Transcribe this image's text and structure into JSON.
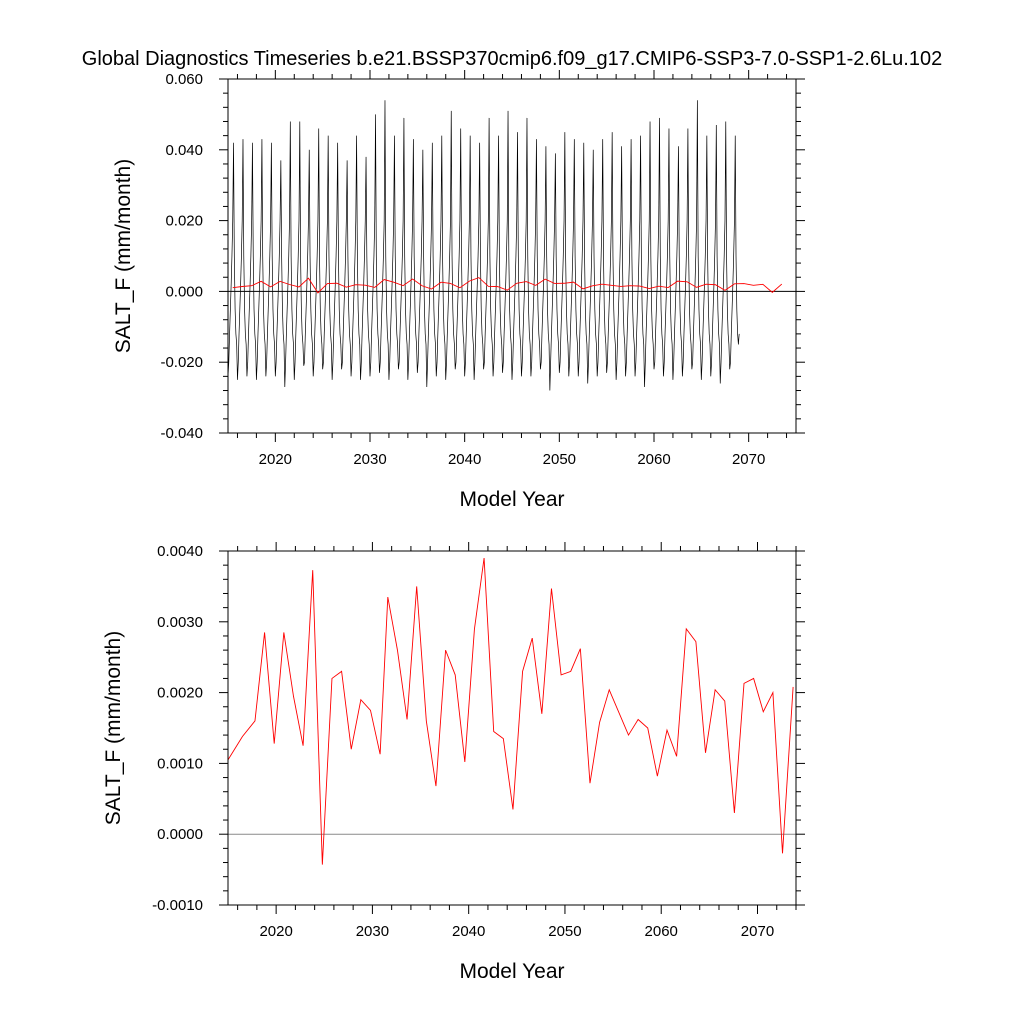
{
  "title": "Global Diagnostics Timeseries b.e21.BSSP370cmip6.f09_g17.CMIP6-SSP3-7.0-SSP1-2.6Lu.102",
  "colors": {
    "monthly": "#000000",
    "annual": "#ff0000",
    "zero_line": "#000000",
    "zero_line_lower": "#8a8a8a"
  },
  "chart_data": [
    {
      "type": "line",
      "xlabel": "Model Year",
      "ylabel": "SALT_F (mm/month)",
      "xlim": [
        2015,
        2075
      ],
      "ylim": [
        -0.04,
        0.06
      ],
      "xticks": [
        2020,
        2030,
        2040,
        2050,
        2060,
        2070
      ],
      "yticks": [
        -0.04,
        -0.02,
        0.0,
        0.02,
        0.04,
        0.06
      ],
      "ytick_labels": [
        "-0.040",
        "-0.020",
        "0.000",
        "0.020",
        "0.040",
        "0.060"
      ],
      "series": [
        {
          "x_start": 2015.0,
          "x_step": 0.08333,
          "values": [
            -0.024,
            -0.02,
            -0.012,
            -0.005,
            0.002,
            0.01,
            0.02,
            0.042,
            0.01,
            -0.005,
            -0.012,
            -0.015,
            -0.025,
            -0.02,
            -0.012,
            -0.005,
            0.002,
            0.01,
            0.02,
            0.043,
            0.01,
            -0.005,
            -0.012,
            -0.015,
            -0.024,
            -0.02,
            -0.012,
            -0.005,
            0.002,
            0.01,
            0.02,
            0.042,
            0.01,
            -0.005,
            -0.012,
            -0.015,
            -0.025,
            -0.02,
            -0.012,
            -0.005,
            0.002,
            0.01,
            0.02,
            0.043,
            0.01,
            -0.005,
            -0.012,
            -0.015,
            -0.024,
            -0.02,
            -0.012,
            -0.005,
            0.002,
            0.01,
            0.02,
            0.042,
            0.01,
            -0.005,
            -0.012,
            -0.015,
            -0.024,
            -0.02,
            -0.012,
            -0.005,
            0.002,
            0.01,
            0.02,
            0.037,
            0.01,
            -0.005,
            -0.012,
            -0.015,
            -0.027,
            -0.02,
            -0.012,
            -0.005,
            0.002,
            0.01,
            0.02,
            0.048,
            0.01,
            -0.005,
            -0.012,
            -0.015,
            -0.025,
            -0.02,
            -0.012,
            -0.005,
            0.002,
            0.01,
            0.02,
            0.048,
            0.01,
            -0.005,
            -0.012,
            -0.015,
            -0.021,
            -0.02,
            -0.012,
            -0.005,
            0.002,
            0.01,
            0.02,
            0.04,
            0.01,
            -0.005,
            -0.012,
            -0.015,
            -0.024,
            -0.02,
            -0.012,
            -0.005,
            0.002,
            0.01,
            0.02,
            0.046,
            0.01,
            -0.005,
            -0.012,
            -0.015,
            -0.022,
            -0.02,
            -0.012,
            -0.005,
            0.002,
            0.01,
            0.02,
            0.044,
            0.01,
            -0.005,
            -0.012,
            -0.015,
            -0.025,
            -0.02,
            -0.012,
            -0.005,
            0.002,
            0.01,
            0.02,
            0.042,
            0.01,
            -0.005,
            -0.012,
            -0.015,
            -0.022,
            -0.02,
            -0.012,
            -0.005,
            0.002,
            0.01,
            0.02,
            0.037,
            0.01,
            -0.005,
            -0.012,
            -0.015,
            -0.024,
            -0.02,
            -0.012,
            -0.005,
            0.002,
            0.01,
            0.02,
            0.044,
            0.01,
            -0.005,
            -0.012,
            -0.015,
            -0.025,
            -0.02,
            -0.012,
            -0.005,
            0.002,
            0.01,
            0.02,
            0.038,
            0.01,
            -0.005,
            -0.012,
            -0.015,
            -0.024,
            -0.02,
            -0.012,
            -0.005,
            0.002,
            0.01,
            0.02,
            0.05,
            0.01,
            -0.005,
            -0.012,
            -0.015,
            -0.023,
            -0.02,
            -0.012,
            -0.005,
            0.002,
            0.01,
            0.02,
            0.054,
            0.01,
            -0.005,
            -0.012,
            -0.015,
            -0.025,
            -0.02,
            -0.012,
            -0.005,
            0.002,
            0.01,
            0.02,
            0.044,
            0.01,
            -0.005,
            -0.012,
            -0.015,
            -0.022,
            -0.02,
            -0.012,
            -0.005,
            0.002,
            0.01,
            0.02,
            0.049,
            0.01,
            -0.005,
            -0.012,
            -0.015,
            -0.025,
            -0.02,
            -0.012,
            -0.005,
            0.002,
            0.01,
            0.02,
            0.043,
            0.01,
            -0.005,
            -0.012,
            -0.015,
            -0.023,
            -0.02,
            -0.012,
            -0.005,
            0.002,
            0.01,
            0.02,
            0.04,
            0.01,
            -0.005,
            -0.012,
            -0.015,
            -0.027,
            -0.02,
            -0.012,
            -0.005,
            0.002,
            0.01,
            0.02,
            0.042,
            0.01,
            -0.005,
            -0.012,
            -0.015,
            -0.024,
            -0.02,
            -0.012,
            -0.005,
            0.002,
            0.01,
            0.02,
            0.044,
            0.01,
            -0.005,
            -0.012,
            -0.015,
            -0.025,
            -0.02,
            -0.012,
            -0.005,
            0.002,
            0.01,
            0.02,
            0.051,
            0.01,
            -0.005,
            -0.012,
            -0.015,
            -0.022,
            -0.02,
            -0.012,
            -0.005,
            0.002,
            0.01,
            0.02,
            0.046,
            0.01,
            -0.005,
            -0.012,
            -0.015,
            -0.024,
            -0.02,
            -0.012,
            -0.005,
            0.002,
            0.01,
            0.02,
            0.044,
            0.01,
            -0.005,
            -0.012,
            -0.015,
            -0.025,
            -0.02,
            -0.012,
            -0.005,
            0.002,
            0.01,
            0.02,
            0.042,
            0.01,
            -0.005,
            -0.012,
            -0.015,
            -0.022,
            -0.02,
            -0.012,
            -0.005,
            0.002,
            0.01,
            0.02,
            0.049,
            0.01,
            -0.005,
            -0.012,
            -0.015,
            -0.024,
            -0.02,
            -0.012,
            -0.005,
            0.002,
            0.01,
            0.02,
            0.044,
            0.01,
            -0.005,
            -0.012,
            -0.015,
            -0.023,
            -0.02,
            -0.012,
            -0.005,
            0.002,
            0.01,
            0.02,
            0.051,
            0.01,
            -0.005,
            -0.012,
            -0.015,
            -0.025,
            -0.02,
            -0.012,
            -0.005,
            0.002,
            0.01,
            0.02,
            0.045,
            0.01,
            -0.005,
            -0.012,
            -0.015,
            -0.024,
            -0.02,
            -0.012,
            -0.005,
            0.002,
            0.01,
            0.02,
            0.049,
            0.01,
            -0.005,
            -0.012,
            -0.015,
            -0.024,
            -0.02,
            -0.012,
            -0.005,
            0.002,
            0.01,
            0.02,
            0.043,
            0.01,
            -0.005,
            -0.012,
            -0.015,
            -0.022,
            -0.02,
            -0.012,
            -0.005,
            0.002,
            0.01,
            0.02,
            0.041,
            0.01,
            -0.005,
            -0.012,
            -0.015,
            -0.028,
            -0.02,
            -0.012,
            -0.005,
            0.002,
            0.01,
            0.02,
            0.039,
            0.01,
            -0.005,
            -0.012,
            -0.015,
            -0.023,
            -0.02,
            -0.012,
            -0.005,
            0.002,
            0.01,
            0.02,
            0.045,
            0.01,
            -0.005,
            -0.012,
            -0.015,
            -0.024,
            -0.02,
            -0.012,
            -0.005,
            0.002,
            0.01,
            0.02,
            0.043,
            0.01,
            -0.005,
            -0.012,
            -0.015,
            -0.024,
            -0.02,
            -0.012,
            -0.005,
            0.002,
            0.01,
            0.02,
            0.042,
            0.01,
            -0.005,
            -0.012,
            -0.015,
            -0.026,
            -0.02,
            -0.012,
            -0.005,
            0.002,
            0.01,
            0.02,
            0.04,
            0.01,
            -0.005,
            -0.012,
            -0.015,
            -0.024,
            -0.02,
            -0.012,
            -0.005,
            0.002,
            0.01,
            0.02,
            0.043,
            0.01,
            -0.005,
            -0.012,
            -0.015,
            -0.023,
            -0.02,
            -0.012,
            -0.005,
            0.002,
            0.01,
            0.02,
            0.045,
            0.01,
            -0.005,
            -0.012,
            -0.015,
            -0.025,
            -0.02,
            -0.012,
            -0.005,
            0.002,
            0.01,
            0.02,
            0.041,
            0.01,
            -0.005,
            -0.012,
            -0.015,
            -0.024,
            -0.02,
            -0.012,
            -0.005,
            0.002,
            0.01,
            0.02,
            0.043,
            0.01,
            -0.005,
            -0.012,
            -0.015,
            -0.024,
            -0.02,
            -0.012,
            -0.005,
            0.002,
            0.01,
            0.02,
            0.044,
            0.01,
            -0.005,
            -0.012,
            -0.015,
            -0.027,
            -0.02,
            -0.012,
            -0.005,
            0.002,
            0.01,
            0.02,
            0.048,
            0.01,
            -0.005,
            -0.012,
            -0.015,
            -0.022,
            -0.02,
            -0.012,
            -0.005,
            0.002,
            0.01,
            0.02,
            0.049,
            0.01,
            -0.005,
            -0.012,
            -0.015,
            -0.024,
            -0.02,
            -0.012,
            -0.005,
            0.002,
            0.01,
            0.02,
            0.046,
            0.01,
            -0.005,
            -0.012,
            -0.015,
            -0.025,
            -0.02,
            -0.012,
            -0.005,
            0.002,
            0.01,
            0.02,
            0.041,
            0.01,
            -0.005,
            -0.012,
            -0.015,
            -0.024,
            -0.02,
            -0.012,
            -0.005,
            0.002,
            0.01,
            0.02,
            0.046,
            0.01,
            -0.005,
            -0.012,
            -0.015,
            -0.022,
            -0.02,
            -0.012,
            -0.005,
            0.002,
            0.01,
            0.02,
            0.054,
            0.01,
            -0.005,
            -0.012,
            -0.015,
            -0.025,
            -0.02,
            -0.012,
            -0.005,
            0.002,
            0.01,
            0.02,
            0.044,
            0.01,
            -0.005,
            -0.012,
            -0.015,
            -0.024,
            -0.02,
            -0.012,
            -0.005,
            0.002,
            0.01,
            0.02,
            0.047,
            0.01,
            -0.005,
            -0.012,
            -0.015,
            -0.026,
            -0.02,
            -0.012,
            -0.005,
            0.002,
            0.01,
            0.02,
            0.048,
            0.01,
            -0.005,
            -0.012,
            -0.015,
            -0.022,
            -0.02,
            -0.012,
            -0.005,
            0.002,
            0.01,
            0.02,
            0.044,
            0.01,
            -0.005,
            -0.012,
            -0.015,
            -0.012
          ]
        },
        {
          "x": [
            2015.5,
            2016.5,
            2017.5,
            2018.5,
            2019.5,
            2020.5,
            2021.5,
            2022.5,
            2023.5,
            2024.5,
            2025.5,
            2026.5,
            2027.5,
            2028.5,
            2029.5,
            2030.5,
            2031.5,
            2032.5,
            2033.5,
            2034.5,
            2035.5,
            2036.5,
            2037.5,
            2038.5,
            2039.5,
            2040.5,
            2041.5,
            2042.5,
            2043.5,
            2044.5,
            2045.5,
            2046.5,
            2047.5,
            2048.5,
            2049.5,
            2050.5,
            2051.5,
            2052.5,
            2053.5,
            2054.5,
            2055.5,
            2056.5,
            2057.5,
            2058.5,
            2059.5,
            2060.5,
            2061.5,
            2062.5,
            2063.5,
            2064.5,
            2065.5,
            2066.5,
            2067.5,
            2068.5,
            2069.5,
            2070.5,
            2071.5,
            2072.5,
            2073.5
          ],
          "values": [
            0.00105,
            0.00138,
            0.0016,
            0.00285,
            0.00128,
            0.00285,
            0.00195,
            0.00125,
            0.00373,
            -0.00043,
            0.0022,
            0.0023,
            0.0012,
            0.0019,
            0.00175,
            0.00113,
            0.00335,
            0.0026,
            0.00162,
            0.0035,
            0.0016,
            0.00068,
            0.0026,
            0.00225,
            0.00102,
            0.0029,
            0.0039,
            0.00145,
            0.00135,
            0.00035,
            0.0023,
            0.00277,
            0.0017,
            0.00347,
            0.00225,
            0.0023,
            0.00262,
            0.00072,
            0.00158,
            0.00204,
            0.00172,
            0.0014,
            0.00162,
            0.0015,
            0.00082,
            0.00147,
            0.0011,
            0.0029,
            0.00272,
            0.00115,
            0.00204,
            0.00188,
            0.0003,
            0.00213,
            0.0022,
            0.00173,
            0.002,
            -0.00027,
            0.00208
          ]
        }
      ]
    },
    {
      "type": "line",
      "xlabel": "Model Year",
      "ylabel": "SALT_F (mm/month)",
      "xlim": [
        2015,
        2074
      ],
      "ylim": [
        -0.001,
        0.004
      ],
      "xticks": [
        2020,
        2030,
        2040,
        2050,
        2060,
        2070
      ],
      "yticks": [
        -0.001,
        0.0,
        0.001,
        0.002,
        0.003,
        0.004
      ],
      "ytick_labels": [
        "-0.0010",
        "0.0000",
        "0.0010",
        "0.0020",
        "0.0030",
        "0.0040"
      ],
      "series": [
        {
          "x": [
            2015.0,
            2016.5,
            2017.8,
            2018.8,
            2019.8,
            2020.8,
            2021.8,
            2022.8,
            2023.8,
            2024.8,
            2025.8,
            2026.8,
            2027.8,
            2028.8,
            2029.8,
            2030.8,
            2031.6,
            2032.6,
            2033.6,
            2034.6,
            2035.6,
            2036.6,
            2037.6,
            2038.6,
            2039.6,
            2040.6,
            2041.6,
            2042.6,
            2043.6,
            2044.6,
            2045.6,
            2046.6,
            2047.6,
            2048.6,
            2049.6,
            2050.6,
            2051.6,
            2052.6,
            2053.6,
            2054.6,
            2055.6,
            2056.6,
            2057.6,
            2058.6,
            2059.6,
            2060.6,
            2061.6,
            2062.6,
            2063.6,
            2064.6,
            2065.6,
            2066.6,
            2067.6,
            2068.6,
            2069.6,
            2070.6,
            2071.6,
            2072.6,
            2073.7
          ],
          "values": [
            0.00105,
            0.00138,
            0.0016,
            0.00285,
            0.00128,
            0.00285,
            0.00195,
            0.00125,
            0.00373,
            -0.00043,
            0.0022,
            0.0023,
            0.0012,
            0.0019,
            0.00175,
            0.00113,
            0.00335,
            0.0026,
            0.00162,
            0.0035,
            0.0016,
            0.00068,
            0.0026,
            0.00225,
            0.00102,
            0.0029,
            0.0039,
            0.00145,
            0.00135,
            0.00035,
            0.0023,
            0.00277,
            0.0017,
            0.00347,
            0.00225,
            0.0023,
            0.00262,
            0.00072,
            0.00158,
            0.00204,
            0.00172,
            0.0014,
            0.00162,
            0.0015,
            0.00082,
            0.00147,
            0.0011,
            0.0029,
            0.00272,
            0.00115,
            0.00204,
            0.00188,
            0.0003,
            0.00213,
            0.0022,
            0.00173,
            0.002,
            -0.00027,
            0.00208
          ]
        }
      ]
    }
  ]
}
